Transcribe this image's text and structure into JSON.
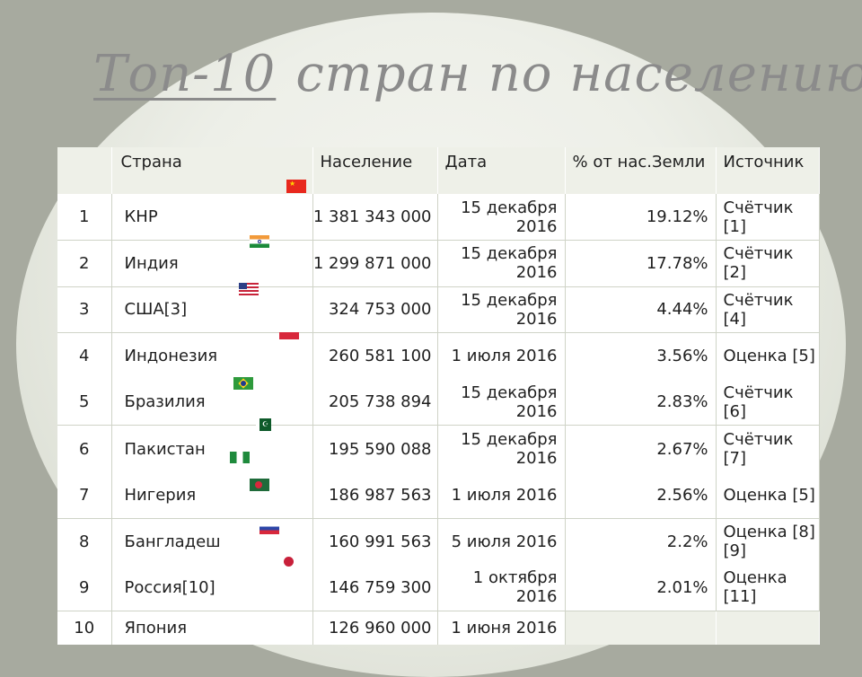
{
  "title": {
    "part1": "Топ-10",
    "part2": "стран по населению"
  },
  "table": {
    "headers": {
      "num": "",
      "country": "Страна",
      "population": "Население",
      "date": "Дата",
      "percent": "% от нас.Земли",
      "source": "Источник"
    },
    "rows": [
      {
        "num": "1",
        "country": "КНР",
        "population": "1 381 343 000",
        "date": "15 декабря 2016",
        "percent": "19.12%",
        "source": "Счётчик [1]"
      },
      {
        "num": "2",
        "country": "Индия",
        "population": "1 299 871 000",
        "date": "15 декабря 2016",
        "percent": "17.78%",
        "source": "Счётчик [2]"
      },
      {
        "num": "3",
        "country": "США[3]",
        "population": "324 753 000",
        "date": "15 декабря 2016",
        "percent": "4.44%",
        "source": "Счётчик [4]"
      },
      {
        "num": "4",
        "country": "Индонезия",
        "population": "260 581 100",
        "date": "1 июля 2016",
        "percent": "3.56%",
        "source": "Оценка [5]"
      },
      {
        "num": "5",
        "country": "Бразилия",
        "population": "205 738 894",
        "date": "15 декабря 2016",
        "percent": "2.83%",
        "source": "Счётчик [6]"
      },
      {
        "num": "6",
        "country": "Пакистан",
        "population": "195 590 088",
        "date": "15 декабря 2016",
        "percent": "2.67%",
        "source": "Счётчик [7]"
      },
      {
        "num": "7",
        "country": "Нигерия",
        "population": "186 987 563",
        "date": "1 июля 2016",
        "percent": "2.56%",
        "source": "Оценка [5]"
      },
      {
        "num": "8",
        "country": "Бангладеш",
        "population": "160 991 563",
        "date": "5 июля 2016",
        "percent": "2.2%",
        "source": "Оценка [8][9]"
      },
      {
        "num": "9",
        "country": "Россия[10]",
        "population": "146 759 300",
        "date": "1 октября 2016",
        "percent": "2.01%",
        "source": "Оценка [11]"
      },
      {
        "num": "10",
        "country": "Япония",
        "population": "126 960 000",
        "date": "1 июня 2016",
        "percent": "",
        "source": ""
      }
    ]
  },
  "flags": [
    "china-flag-icon",
    "india-flag-icon",
    "usa-flag-icon",
    "indonesia-flag-icon",
    "brazil-flag-icon",
    "pakistan-flag-icon",
    "nigeria-flag-icon",
    "bangladesh-flag-icon",
    "russia-flag-icon",
    "japan-flag-icon"
  ],
  "colors": {
    "background": "#a7aa9f",
    "title": "#8b8b8b",
    "header": "#eef0e8"
  }
}
